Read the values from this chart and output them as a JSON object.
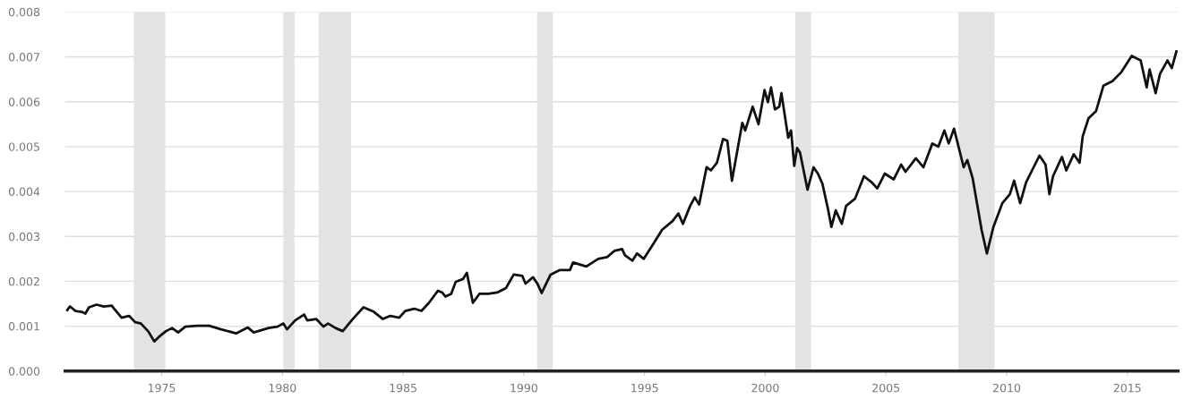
{
  "chart_data": {
    "type": "line",
    "x": [
      1971.09,
      1971.2,
      1971.43,
      1971.68,
      1971.84,
      1971.99,
      1972.3,
      1972.6,
      1972.93,
      1973.03,
      1973.34,
      1973.65,
      1973.9,
      1974.14,
      1974.45,
      1974.69,
      1974.88,
      1975.18,
      1975.43,
      1975.68,
      1975.98,
      1976.48,
      1976.97,
      1977.46,
      1978.08,
      1978.57,
      1978.81,
      1979.43,
      1979.8,
      1980.04,
      1980.19,
      1980.53,
      1980.9,
      1981.03,
      1981.4,
      1981.7,
      1981.89,
      1982.2,
      1982.5,
      1982.93,
      1983.36,
      1983.79,
      1984.16,
      1984.47,
      1984.84,
      1985.09,
      1985.46,
      1985.76,
      1986.07,
      1986.44,
      1986.62,
      1986.75,
      1986.99,
      1987.18,
      1987.48,
      1987.64,
      1987.89,
      1988.16,
      1988.53,
      1988.9,
      1989.26,
      1989.58,
      1989.94,
      1990.07,
      1990.38,
      1990.56,
      1990.74,
      1991.11,
      1991.48,
      1991.91,
      1992.04,
      1992.59,
      1993.08,
      1993.45,
      1993.76,
      1994.07,
      1994.19,
      1994.5,
      1994.69,
      1994.97,
      1995.42,
      1995.73,
      1996.16,
      1996.4,
      1996.59,
      1996.89,
      1997.08,
      1997.26,
      1997.57,
      1997.75,
      1998.0,
      1998.25,
      1998.43,
      1998.62,
      1999.05,
      1999.17,
      1999.48,
      1999.72,
      1999.97,
      2000.11,
      2000.24,
      2000.4,
      2000.58,
      2000.67,
      2000.95,
      2001.07,
      2001.2,
      2001.32,
      2001.44,
      2001.75,
      2002.0,
      2002.18,
      2002.37,
      2002.61,
      2002.74,
      2002.92,
      2003.17,
      2003.35,
      2003.72,
      2004.09,
      2004.4,
      2004.64,
      2004.95,
      2005.32,
      2005.63,
      2005.81,
      2006.24,
      2006.55,
      2006.92,
      2007.17,
      2007.42,
      2007.6,
      2007.82,
      2008.22,
      2008.37,
      2008.59,
      2008.96,
      2009.18,
      2009.45,
      2009.82,
      2010.13,
      2010.31,
      2010.56,
      2010.8,
      2011.05,
      2011.36,
      2011.61,
      2011.77,
      2011.92,
      2012.29,
      2012.47,
      2012.78,
      2013.02,
      2013.15,
      2013.39,
      2013.7,
      2014.01,
      2014.38,
      2014.75,
      2015.18,
      2015.55,
      2015.8,
      2015.92,
      2016.17,
      2016.35,
      2016.66,
      2016.84,
      2017.03
    ],
    "series": [
      {
        "color": "#111111",
        "values": [
          0.00136,
          0.00144,
          0.00134,
          0.00132,
          0.00128,
          0.00142,
          0.00148,
          0.00144,
          0.00146,
          0.00139,
          0.00119,
          0.00123,
          0.00109,
          0.00106,
          0.00088,
          0.00066,
          0.00076,
          0.00089,
          0.00096,
          0.00086,
          0.00099,
          0.00101,
          0.00101,
          0.00093,
          0.00084,
          0.00097,
          0.00086,
          0.00096,
          0.00099,
          0.00106,
          0.00093,
          0.00113,
          0.00126,
          0.00113,
          0.00116,
          0.00099,
          0.00106,
          0.00096,
          0.00089,
          0.00117,
          0.00142,
          0.00132,
          0.00116,
          0.00123,
          0.00119,
          0.00134,
          0.00139,
          0.00134,
          0.00152,
          0.00179,
          0.00175,
          0.00166,
          0.00172,
          0.00199,
          0.00205,
          0.00219,
          0.00152,
          0.00172,
          0.00172,
          0.00175,
          0.00185,
          0.00215,
          0.00212,
          0.00195,
          0.00209,
          0.00195,
          0.00174,
          0.00215,
          0.00225,
          0.00225,
          0.00242,
          0.00233,
          0.0025,
          0.00254,
          0.00268,
          0.00272,
          0.00258,
          0.00246,
          0.00262,
          0.0025,
          0.00288,
          0.00315,
          0.00334,
          0.00351,
          0.00328,
          0.00368,
          0.00387,
          0.00371,
          0.00454,
          0.00447,
          0.00464,
          0.00517,
          0.00513,
          0.00424,
          0.00553,
          0.00536,
          0.00589,
          0.0055,
          0.00626,
          0.00599,
          0.00632,
          0.00583,
          0.00589,
          0.00619,
          0.0052,
          0.00536,
          0.00457,
          0.00497,
          0.00487,
          0.00404,
          0.00454,
          0.0044,
          0.00417,
          0.00358,
          0.00321,
          0.00358,
          0.00328,
          0.00368,
          0.00384,
          0.00434,
          0.00421,
          0.00407,
          0.0044,
          0.00427,
          0.0046,
          0.00444,
          0.00474,
          0.00454,
          0.00507,
          0.005,
          0.00536,
          0.00507,
          0.0054,
          0.00454,
          0.0047,
          0.0043,
          0.00315,
          0.00262,
          0.00321,
          0.00374,
          0.00394,
          0.00424,
          0.00374,
          0.0042,
          0.00447,
          0.0048,
          0.0046,
          0.00394,
          0.00434,
          0.00477,
          0.00447,
          0.00483,
          0.00464,
          0.00523,
          0.00563,
          0.00579,
          0.00636,
          0.00646,
          0.00666,
          0.00702,
          0.00692,
          0.00632,
          0.00672,
          0.00619,
          0.00662,
          0.00692,
          0.00675,
          0.00712
        ]
      }
    ],
    "xlim": [
      1971,
      2017.1
    ],
    "ylim": [
      0,
      0.008
    ],
    "xticks": [
      1975,
      1980,
      1985,
      1990,
      1995,
      2000,
      2005,
      2010,
      2015
    ],
    "yticks": [
      {
        "value": 0,
        "label": "0.000"
      },
      {
        "value": 0.001,
        "label": "0.001"
      },
      {
        "value": 0.002,
        "label": "0.002"
      },
      {
        "value": 0.003,
        "label": "0.003"
      },
      {
        "value": 0.004,
        "label": "0.004"
      },
      {
        "value": 0.005,
        "label": "0.005"
      },
      {
        "value": 0.006,
        "label": "0.006"
      },
      {
        "value": 0.007,
        "label": "0.007"
      },
      {
        "value": 0.008,
        "label": "0.008"
      }
    ],
    "bands": [
      {
        "axis": "x",
        "from": 1973.85,
        "to": 1975.15,
        "color": "#e3e3e3"
      },
      {
        "axis": "x",
        "from": 1980.04,
        "to": 1980.5,
        "color": "#e3e3e3"
      },
      {
        "axis": "x",
        "from": 1981.5,
        "to": 1982.85,
        "color": "#e3e3e3"
      },
      {
        "axis": "x",
        "from": 1990.55,
        "to": 1991.2,
        "color": "#e3e3e3"
      },
      {
        "axis": "x",
        "from": 2001.24,
        "to": 2001.9,
        "color": "#e3e3e3"
      },
      {
        "axis": "x",
        "from": 2008.0,
        "to": 2009.5,
        "color": "#e3e3e3"
      }
    ],
    "grid": "y",
    "line_style": "solid",
    "marker": "none"
  }
}
